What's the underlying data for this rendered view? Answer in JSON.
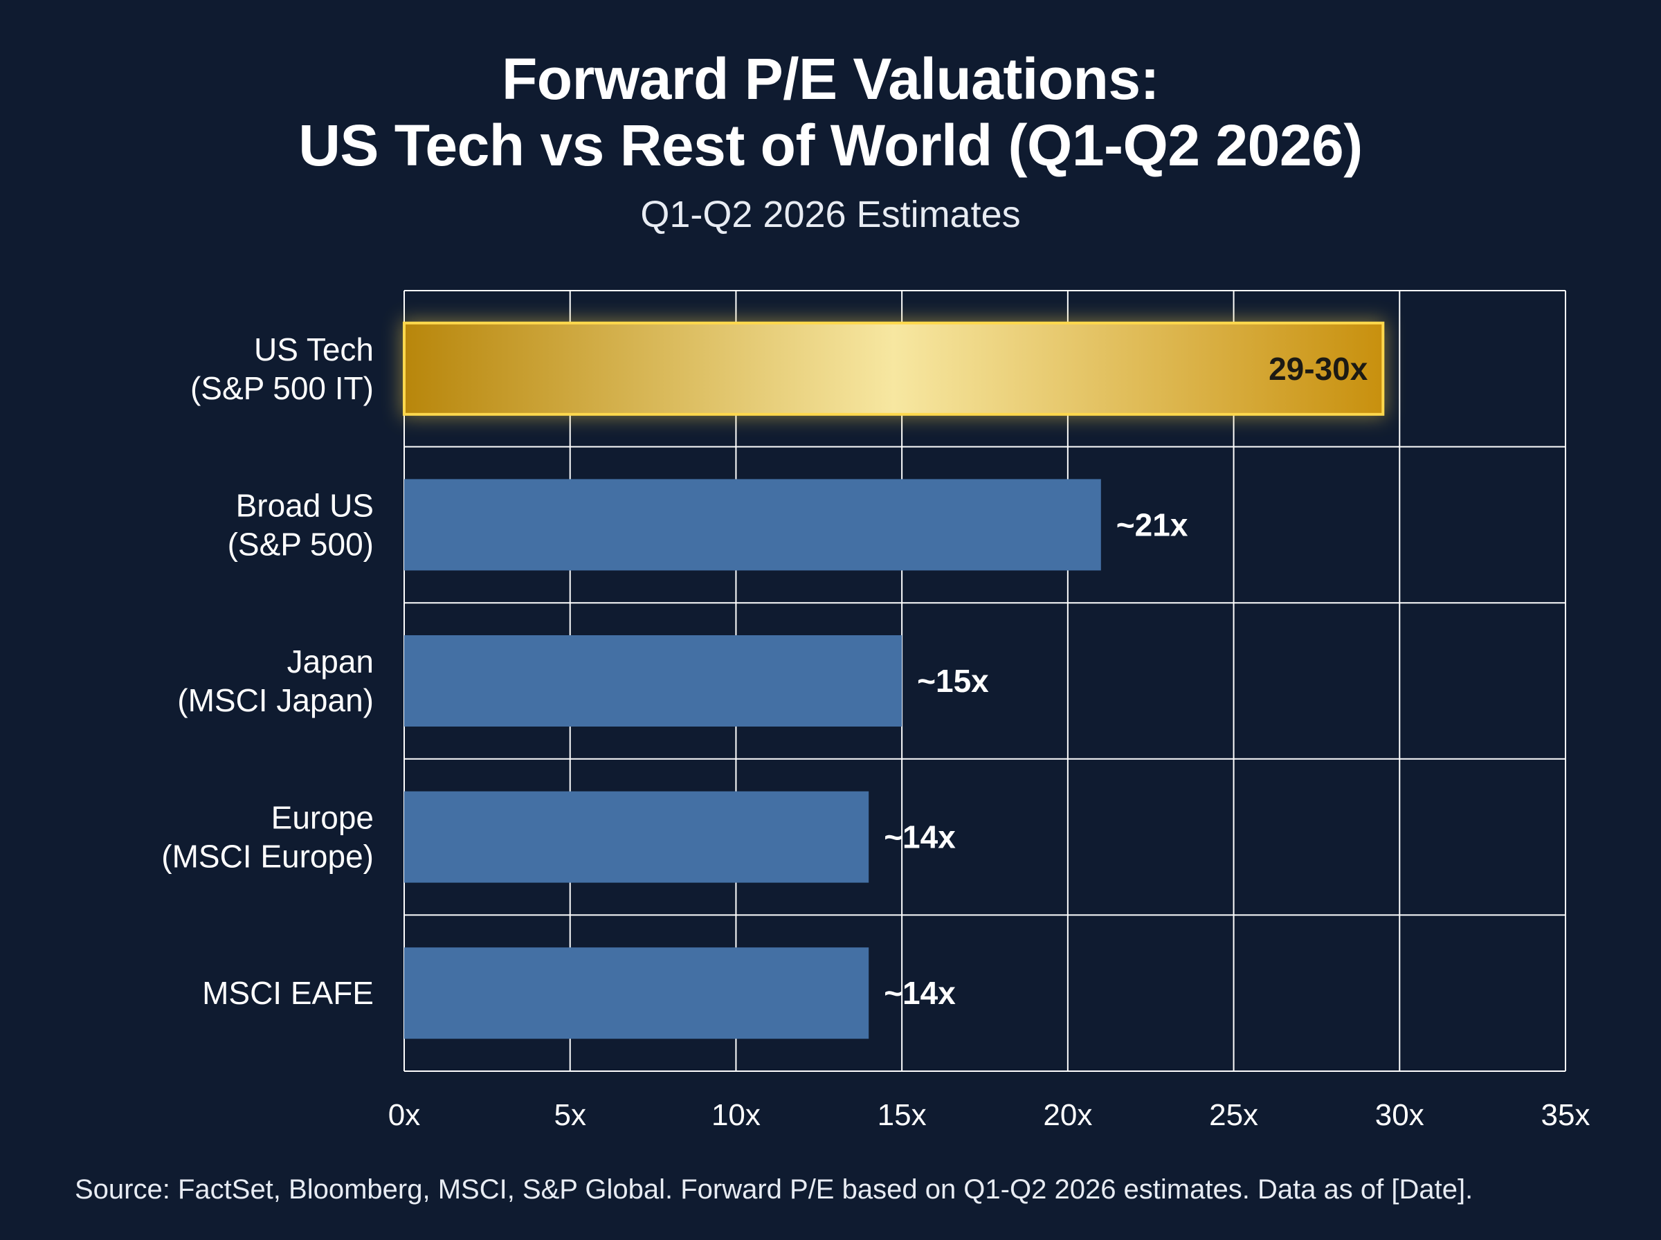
{
  "chart_data": {
    "type": "bar",
    "orientation": "horizontal",
    "title_line1": "Forward P/E Valuations:",
    "title_line2": "US Tech vs Rest of World (Q1-Q2 2026)",
    "subtitle": "Q1-Q2 2026 Estimates",
    "xlabel": "",
    "ylabel": "",
    "xlim": [
      0,
      35
    ],
    "x_ticks": [
      0,
      5,
      10,
      15,
      20,
      25,
      30,
      35
    ],
    "x_tick_labels": [
      "0x",
      "5x",
      "10x",
      "15x",
      "20x",
      "25x",
      "30x",
      "35x"
    ],
    "grid": true,
    "categories": [
      [
        "US Tech",
        "(S&P 500 IT)"
      ],
      [
        "Broad US",
        "(S&P 500)"
      ],
      [
        "Japan",
        "(MSCI Japan)"
      ],
      [
        "Europe",
        "(MSCI Europe)"
      ],
      [
        "MSCI EAFE"
      ]
    ],
    "values": [
      29.5,
      21,
      15,
      14,
      14
    ],
    "value_labels": [
      "29-30x",
      "~21x",
      "~15x",
      "~14x",
      "~14x"
    ],
    "highlight_index": 0,
    "colors": {
      "highlight_start": "#b8860b",
      "highlight_mid": "#f7e7a1",
      "highlight_end": "#c8900e",
      "highlight_border": "#ffd84d",
      "bar": "#4470a4",
      "grid": "#ffffff",
      "background": "#0f1b30"
    }
  },
  "source_note": "Source: FactSet, Bloomberg, MSCI, S&P Global. Forward P/E based on Q1-Q2 2026 estimates. Data as of [Date]."
}
